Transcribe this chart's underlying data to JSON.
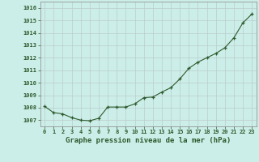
{
  "x": [
    0,
    1,
    2,
    3,
    4,
    5,
    6,
    7,
    8,
    9,
    10,
    11,
    12,
    13,
    14,
    15,
    16,
    17,
    18,
    19,
    20,
    21,
    22,
    23
  ],
  "y": [
    1008.1,
    1007.6,
    1007.5,
    1007.2,
    1007.0,
    1006.95,
    1007.15,
    1008.05,
    1008.05,
    1008.05,
    1008.3,
    1008.8,
    1008.85,
    1009.25,
    1009.6,
    1010.3,
    1011.15,
    1011.65,
    1012.0,
    1012.35,
    1012.8,
    1013.6,
    1014.8,
    1015.5
  ],
  "line_color": "#2d5a2d",
  "marker": "+",
  "marker_color": "#2d5a2d",
  "bg_color": "#cceee8",
  "grid_color": "#bbcccc",
  "xlabel": "Graphe pression niveau de la mer (hPa)",
  "xlabel_color": "#2d5a2d",
  "tick_color": "#2d5a2d",
  "ylim": [
    1006.5,
    1016.5
  ],
  "yticks": [
    1007,
    1008,
    1009,
    1010,
    1011,
    1012,
    1013,
    1014,
    1015,
    1016
  ],
  "xticks": [
    0,
    1,
    2,
    3,
    4,
    5,
    6,
    7,
    8,
    9,
    10,
    11,
    12,
    13,
    14,
    15,
    16,
    17,
    18,
    19,
    20,
    21,
    22,
    23
  ],
  "xlim": [
    -0.5,
    23.5
  ],
  "spine_color": "#888888"
}
